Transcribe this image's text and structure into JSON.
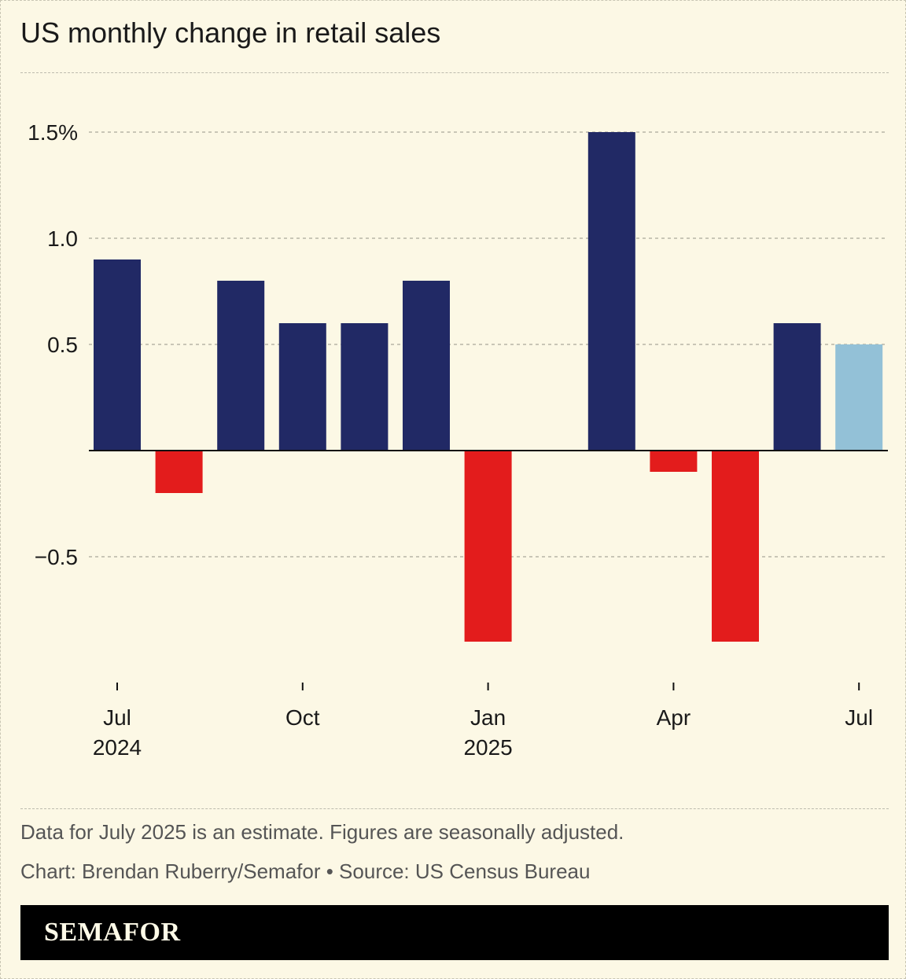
{
  "title": "US monthly change in retail sales",
  "footer": {
    "note": "Data for July 2025 is an estimate. Figures are seasonally adjusted.",
    "credit": "Chart: Brendan Ruberry/Semafor • Source: US Census Bureau",
    "brand": "SEMAFOR"
  },
  "colors": {
    "positive": "#212965",
    "negative": "#e31c1c",
    "estimate": "#93c1d7",
    "grid": "#aaa79a",
    "axis": "#111111",
    "text": "#1a1a1a"
  },
  "chart_data": {
    "type": "bar",
    "title": "US monthly change in retail sales",
    "xlabel": "",
    "ylabel": "",
    "ylim": [
      -1.0,
      1.5
    ],
    "grid": true,
    "categories": [
      "Jul 2024",
      "Aug 2024",
      "Sep 2024",
      "Oct 2024",
      "Nov 2024",
      "Dec 2024",
      "Jan 2025",
      "Feb 2025",
      "Mar 2025",
      "Apr 2025",
      "May 2025",
      "Jun 2025",
      "Jul 2025"
    ],
    "values": [
      0.9,
      -0.2,
      0.8,
      0.6,
      0.6,
      0.8,
      -0.9,
      null,
      1.5,
      -0.1,
      -0.9,
      0.6,
      0.5
    ],
    "estimate_index": 12,
    "y_ticks": [
      {
        "value": 1.5,
        "label": "1.5%"
      },
      {
        "value": 1.0,
        "label": "1.0"
      },
      {
        "value": 0.5,
        "label": "0.5"
      },
      {
        "value": -0.5,
        "label": "−0.5"
      }
    ],
    "x_ticks": [
      {
        "index": 0,
        "label": "Jul",
        "sublabel": "2024"
      },
      {
        "index": 3,
        "label": "Oct",
        "sublabel": ""
      },
      {
        "index": 6,
        "label": "Jan",
        "sublabel": "2025"
      },
      {
        "index": 9,
        "label": "Apr",
        "sublabel": ""
      },
      {
        "index": 12,
        "label": "Jul",
        "sublabel": ""
      }
    ]
  }
}
